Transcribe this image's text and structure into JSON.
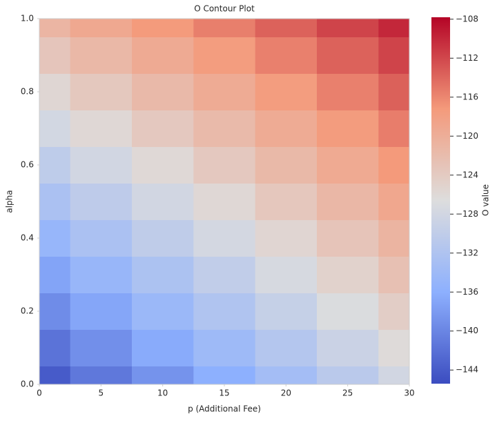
{
  "chart_data": {
    "type": "contour",
    "title": "O Contour Plot",
    "x_label": "p (Additional Fee)",
    "y_label": "alpha",
    "colorbar_label": "O value",
    "colormap": "coolwarm",
    "x": [
      0,
      5,
      10,
      15,
      20,
      25,
      30
    ],
    "y": [
      0,
      0.1,
      0.2,
      0.3,
      0.4,
      0.5,
      0.6,
      0.7,
      0.8,
      0.9,
      1
    ],
    "z": [
      [
        -144,
        -141.3,
        -138.7,
        -136,
        -133.3,
        -130.7,
        -128
      ],
      [
        -141.7,
        -139.1,
        -136.5,
        -134,
        -131.4,
        -128.8,
        -126.2
      ],
      [
        -139.4,
        -136.9,
        -134.4,
        -131.9,
        -129.4,
        -126.9,
        -124.4
      ],
      [
        -137.1,
        -134.7,
        -132.3,
        -129.9,
        -127.4,
        -125,
        -122.6
      ],
      [
        -134.8,
        -132.5,
        -130.1,
        -127.8,
        -125.5,
        -123.1,
        -120.8
      ],
      [
        -132.5,
        -130.3,
        -128,
        -125.8,
        -123.5,
        -121.3,
        -119
      ],
      [
        -130.2,
        -128,
        -125.9,
        -123.7,
        -121.5,
        -119.4,
        -117.2
      ],
      [
        -127.9,
        -125.8,
        -123.7,
        -121.7,
        -119.6,
        -117.5,
        -115.4
      ],
      [
        -125.6,
        -123.6,
        -121.6,
        -119.6,
        -117.6,
        -115.6,
        -113.6
      ],
      [
        -123.3,
        -121.4,
        -119.5,
        -117.6,
        -115.6,
        -113.7,
        -111.8
      ],
      [
        -121,
        -119.2,
        -117.3,
        -115.5,
        -113.7,
        -111.8,
        -110
      ]
    ],
    "xlim": [
      0,
      30
    ],
    "xticks": [
      0,
      5,
      10,
      15,
      20,
      25,
      30
    ],
    "ylim": [
      0,
      1
    ],
    "yticks": [
      {
        "value": 0,
        "label": "0.0"
      },
      0.2,
      0.4,
      0.6,
      0.8,
      {
        "value": 1,
        "label": "1.0"
      }
    ],
    "clim": [
      -145.4,
      -107.8
    ],
    "cticks": [
      {
        "value": -144,
        "label": "−144"
      },
      {
        "value": -140,
        "label": "−140"
      },
      {
        "value": -136,
        "label": "−136"
      },
      {
        "value": -132,
        "label": "−132"
      },
      {
        "value": -128,
        "label": "−128"
      },
      {
        "value": -124,
        "label": "−124"
      },
      {
        "value": -120,
        "label": "−120"
      },
      {
        "value": -116,
        "label": "−116"
      },
      {
        "value": -112,
        "label": "−112"
      },
      {
        "value": -108,
        "label": "−108"
      }
    ]
  }
}
